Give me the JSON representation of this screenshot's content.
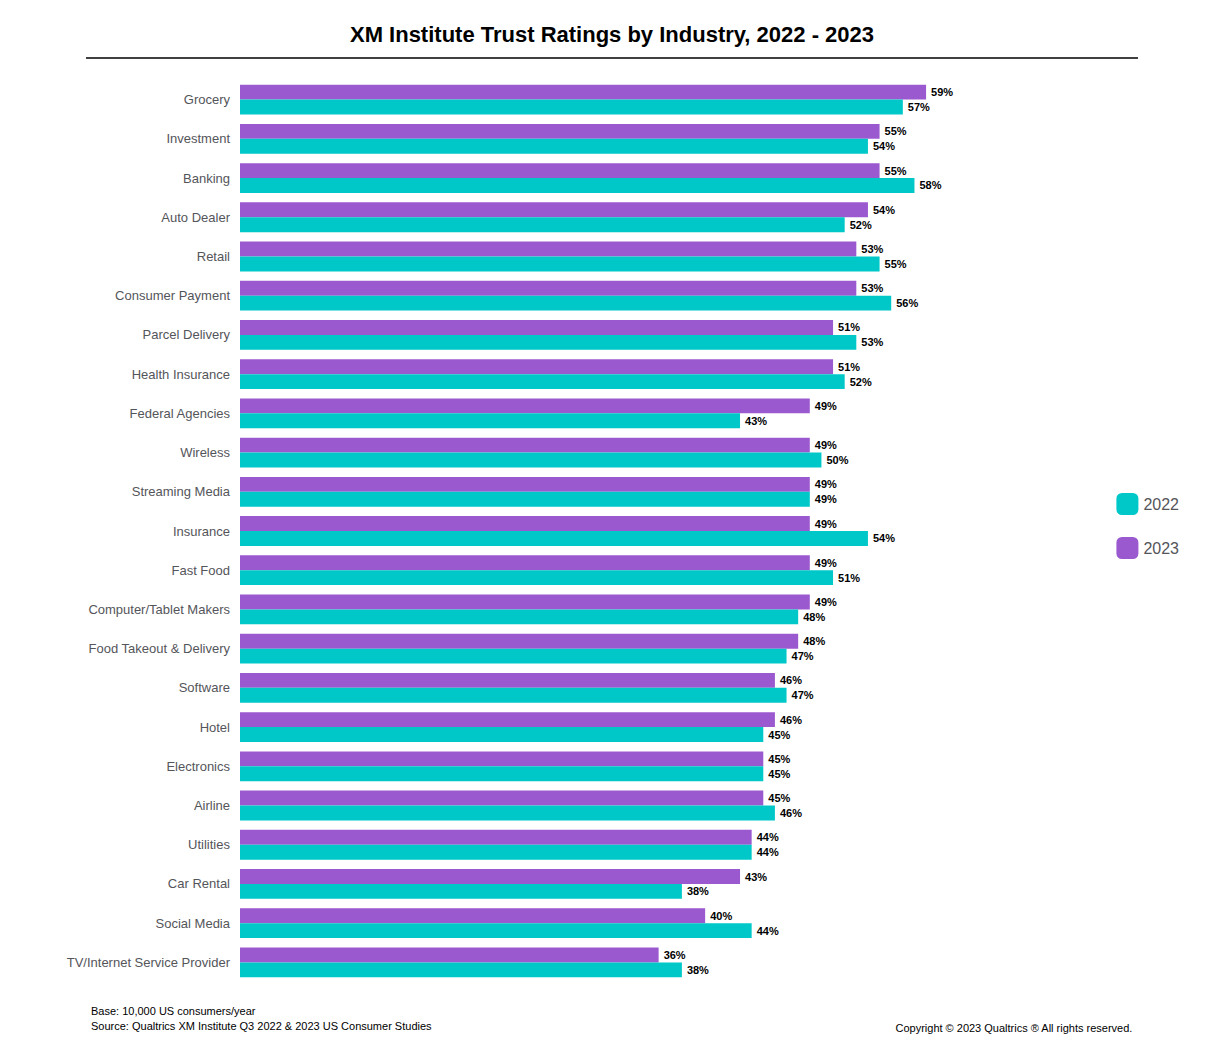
{
  "chart_data": {
    "type": "bar",
    "title": "XM Institute Trust Ratings by Industry, 2022 - 2023",
    "orientation": "horizontal",
    "categories": [
      "Grocery",
      "Investment",
      "Banking",
      "Auto Dealer",
      "Retail",
      "Consumer Payment",
      "Parcel Delivery",
      "Health Insurance",
      "Federal Agencies",
      "Wireless",
      "Streaming Media",
      "Insurance",
      "Fast Food",
      "Computer/Tablet Makers",
      "Food Takeout & Delivery",
      "Software",
      "Hotel",
      "Electronics",
      "Airline",
      "Utilities",
      "Car Rental",
      "Social Media",
      "TV/Internet Service Provider"
    ],
    "series": [
      {
        "name": "2023",
        "color": "#9B59D0",
        "values": [
          59,
          55,
          55,
          54,
          53,
          53,
          51,
          51,
          49,
          49,
          49,
          49,
          49,
          49,
          48,
          46,
          46,
          45,
          45,
          44,
          43,
          40,
          36
        ],
        "value_labels": [
          "59%",
          "55%",
          "55%",
          "54%",
          "53%",
          "53%",
          "51%",
          "51%",
          "49%",
          "49%",
          "49%",
          "49%",
          "49%",
          "49%",
          "48%",
          "46%",
          "46%",
          "45%",
          "45%",
          "44%",
          "43%",
          "40%",
          "36%"
        ]
      },
      {
        "name": "2022",
        "color": "#00C8C8",
        "values": [
          57,
          54,
          58,
          52,
          55,
          56,
          53,
          52,
          43,
          50,
          49,
          54,
          51,
          48,
          47,
          47,
          45,
          45,
          46,
          44,
          38,
          44,
          38
        ],
        "value_labels": [
          "57%",
          "54%",
          "58%",
          "52%",
          "55%",
          "56%",
          "53%",
          "52%",
          "43%",
          "50%",
          "49%",
          "54%",
          "51%",
          "48%",
          "47%",
          "47%",
          "45%",
          "45%",
          "46%",
          "44%",
          "38%",
          "44%",
          "38%"
        ]
      }
    ],
    "xlim": [
      0,
      70
    ],
    "grid": false,
    "legend": "right",
    "data_labels": true,
    "tick_labels": "y",
    "annotations": [
      "Base: 10,000 US consumers/year\nSource: Qualtrics XM Institute Q3 2022 & 2023 US Consumer Studies",
      "Copyright © 2023 Qualtrics ® All rights reserved."
    ]
  }
}
